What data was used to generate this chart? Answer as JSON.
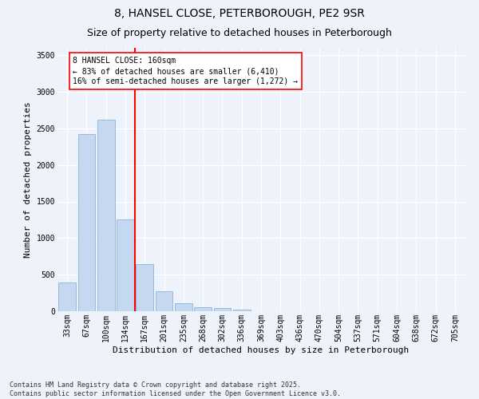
{
  "title1": "8, HANSEL CLOSE, PETERBOROUGH, PE2 9SR",
  "title2": "Size of property relative to detached houses in Peterborough",
  "xlabel": "Distribution of detached houses by size in Peterborough",
  "ylabel": "Number of detached properties",
  "categories": [
    "33sqm",
    "67sqm",
    "100sqm",
    "134sqm",
    "167sqm",
    "201sqm",
    "235sqm",
    "268sqm",
    "302sqm",
    "336sqm",
    "369sqm",
    "403sqm",
    "436sqm",
    "470sqm",
    "504sqm",
    "537sqm",
    "571sqm",
    "604sqm",
    "638sqm",
    "672sqm",
    "705sqm"
  ],
  "values": [
    390,
    2420,
    2620,
    1260,
    640,
    270,
    105,
    55,
    40,
    20,
    5,
    0,
    0,
    0,
    0,
    0,
    0,
    0,
    0,
    0,
    0
  ],
  "bar_color": "#c5d8f0",
  "bar_edge_color": "#8ab4d8",
  "vline_color": "red",
  "annotation_text": "8 HANSEL CLOSE: 160sqm\n← 83% of detached houses are smaller (6,410)\n16% of semi-detached houses are larger (1,272) →",
  "annotation_box_color": "white",
  "annotation_box_edge": "red",
  "ylim": [
    0,
    3600
  ],
  "yticks": [
    0,
    500,
    1000,
    1500,
    2000,
    2500,
    3000,
    3500
  ],
  "footer_line1": "Contains HM Land Registry data © Crown copyright and database right 2025.",
  "footer_line2": "Contains public sector information licensed under the Open Government Licence v3.0.",
  "bg_color": "#eef2fb",
  "grid_color": "white",
  "title_fontsize": 10,
  "subtitle_fontsize": 9,
  "tick_fontsize": 7,
  "ylabel_fontsize": 8,
  "xlabel_fontsize": 8,
  "footer_fontsize": 6
}
